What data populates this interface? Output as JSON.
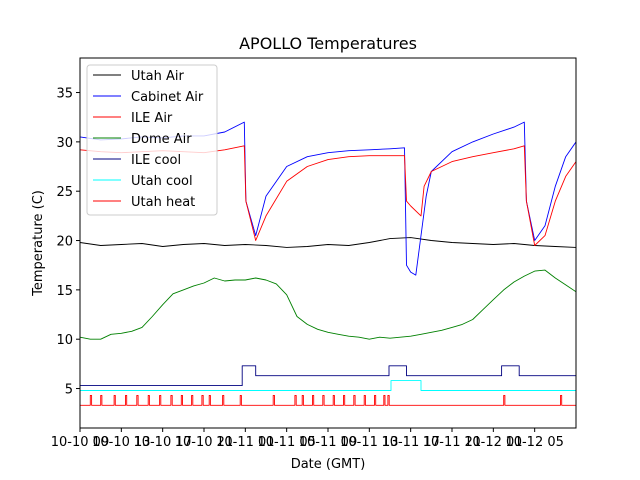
{
  "chart_data": {
    "type": "line",
    "title": "APOLLO Temperatures",
    "xlabel": "Date (GMT)",
    "ylabel": "Temperature (C)",
    "xlim": [
      0,
      48
    ],
    "ylim": [
      1,
      38.5
    ],
    "yticks": [
      5,
      10,
      15,
      20,
      25,
      30,
      35
    ],
    "xtick_positions": [
      0,
      4,
      8,
      12,
      16,
      20,
      24,
      28,
      32,
      36,
      40,
      44
    ],
    "xtick_labels": [
      "10-10 09",
      "10-10 13",
      "10-10 17",
      "10-10 21",
      "10-11 01",
      "10-11 05",
      "10-11 09",
      "10-11 13",
      "10-11 17",
      "10-11 21",
      "10-12 01",
      "10-12 05"
    ],
    "legend_position": "top-left",
    "series": [
      {
        "name": "Utah Air",
        "color": "#000000",
        "x": [
          0,
          2,
          4,
          6,
          8,
          10,
          12,
          14,
          16,
          18,
          20,
          22,
          24,
          26,
          28,
          30,
          32,
          34,
          36,
          38,
          40,
          42,
          44,
          46,
          48
        ],
        "y": [
          19.8,
          19.5,
          19.6,
          19.7,
          19.4,
          19.6,
          19.7,
          19.5,
          19.6,
          19.5,
          19.3,
          19.4,
          19.6,
          19.5,
          19.8,
          20.2,
          20.3,
          20.0,
          19.8,
          19.7,
          19.6,
          19.7,
          19.5,
          19.4,
          19.3
        ]
      },
      {
        "name": "Cabinet Air",
        "color": "#0000ff",
        "x": [
          0,
          2,
          4,
          6,
          8,
          10,
          12,
          14,
          15.9,
          16.05,
          17,
          18,
          20,
          22,
          24,
          26,
          28,
          30,
          31.4,
          31.6,
          32,
          32.5,
          33.5,
          34,
          36,
          38,
          40,
          42,
          43,
          43.2,
          44,
          45,
          46,
          47,
          48
        ],
        "y": [
          30.5,
          30.2,
          30.3,
          30.5,
          30.4,
          30.6,
          30.6,
          31.0,
          32.0,
          24.0,
          20.5,
          24.5,
          27.5,
          28.5,
          28.9,
          29.1,
          29.2,
          29.3,
          29.4,
          17.5,
          16.8,
          16.5,
          24.5,
          27.0,
          29.0,
          30.0,
          30.8,
          31.5,
          32.0,
          24.0,
          20.0,
          21.5,
          25.5,
          28.5,
          30.0
        ]
      },
      {
        "name": "ILE Air",
        "color": "#ff0000",
        "x": [
          0,
          2,
          4,
          6,
          8,
          10,
          12,
          14,
          15.9,
          16.05,
          17,
          18,
          20,
          22,
          24,
          26,
          28,
          30,
          31.4,
          31.6,
          32,
          33,
          33.3,
          34,
          36,
          38,
          40,
          42,
          43,
          43.2,
          44,
          45,
          46,
          47,
          48
        ],
        "y": [
          29.2,
          29.0,
          28.9,
          29.0,
          29.1,
          29.0,
          28.9,
          29.2,
          29.6,
          24.0,
          20.0,
          22.5,
          26.0,
          27.5,
          28.2,
          28.5,
          28.6,
          28.6,
          28.6,
          24.0,
          23.5,
          22.5,
          25.5,
          27.0,
          28.0,
          28.5,
          28.9,
          29.3,
          29.6,
          24.0,
          19.5,
          20.5,
          24.0,
          26.5,
          28.0
        ]
      },
      {
        "name": "Dome Air",
        "color": "#008000",
        "x": [
          0,
          1,
          2,
          3,
          4,
          5,
          6,
          7,
          8,
          9,
          10,
          11,
          12,
          13,
          14,
          15,
          16,
          17,
          18,
          19,
          20,
          21,
          22,
          23,
          24,
          25,
          26,
          27,
          28,
          29,
          30,
          31,
          32,
          33,
          34,
          35,
          36,
          37,
          38,
          39,
          40,
          41,
          42,
          43,
          44,
          45,
          46,
          47,
          48
        ],
        "y": [
          10.2,
          10.0,
          10.0,
          10.5,
          10.6,
          10.8,
          11.2,
          12.3,
          13.5,
          14.6,
          15.0,
          15.4,
          15.7,
          16.2,
          15.9,
          16.0,
          16.0,
          16.2,
          16.0,
          15.6,
          14.5,
          12.3,
          11.5,
          11.0,
          10.7,
          10.5,
          10.3,
          10.2,
          10.0,
          10.2,
          10.1,
          10.2,
          10.3,
          10.5,
          10.7,
          10.9,
          11.2,
          11.5,
          12.0,
          13.0,
          14.0,
          15.0,
          15.8,
          16.4,
          16.9,
          17.0,
          16.2,
          15.5,
          14.8
        ]
      },
      {
        "name": "ILE cool",
        "color": "#000080",
        "x": [
          0,
          15.7,
          15.7,
          17.0,
          17.0,
          29.9,
          29.9,
          31.6,
          31.6,
          40.8,
          40.8,
          42.5,
          42.5,
          48
        ],
        "y": [
          5.3,
          5.3,
          7.3,
          7.3,
          6.3,
          6.3,
          7.3,
          7.3,
          6.3,
          6.3,
          7.3,
          7.3,
          6.3,
          6.3
        ]
      },
      {
        "name": "Utah cool",
        "color": "#00ffff",
        "x": [
          0,
          30.1,
          30.1,
          33.0,
          33.0,
          48
        ],
        "y": [
          4.8,
          4.8,
          5.8,
          5.8,
          4.8,
          4.8
        ]
      },
      {
        "name": "Utah heat",
        "color": "#ff0000",
        "base": 3.3,
        "spike": 4.3,
        "spikes": [
          1,
          2,
          3.3,
          4.4,
          5.5,
          6.6,
          7.7,
          8.8,
          9.8,
          10.8,
          11.8,
          12.5,
          13.8,
          15.5,
          18.7,
          20.8,
          21.5,
          22.5,
          23.5,
          24.5,
          25.5,
          26.5,
          27.5,
          28.5,
          29.4,
          29.8,
          41.0,
          46.5
        ]
      }
    ]
  }
}
